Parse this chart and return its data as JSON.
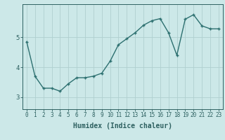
{
  "x": [
    0,
    1,
    2,
    3,
    4,
    5,
    6,
    7,
    8,
    9,
    10,
    11,
    12,
    13,
    14,
    15,
    16,
    17,
    18,
    19,
    20,
    21,
    22,
    23
  ],
  "y": [
    4.85,
    3.7,
    3.3,
    3.3,
    3.2,
    3.45,
    3.65,
    3.65,
    3.7,
    3.8,
    4.2,
    4.75,
    4.95,
    5.15,
    5.4,
    5.55,
    5.62,
    5.15,
    4.4,
    5.6,
    5.75,
    5.38,
    5.28,
    5.28
  ],
  "line_color": "#2d7070",
  "marker": "+",
  "marker_size": 3.5,
  "bg_color": "#cce8e8",
  "grid_color": "#b0d0d0",
  "xlabel": "Humidex (Indice chaleur)",
  "xlabel_fontsize": 7,
  "yticks": [
    3,
    4,
    5
  ],
  "ylim": [
    2.6,
    6.1
  ],
  "xlim": [
    -0.5,
    23.5
  ],
  "tick_color": "#2d6060",
  "xtick_fontsize": 5.5,
  "ytick_fontsize": 6.5,
  "line_width": 1.0
}
